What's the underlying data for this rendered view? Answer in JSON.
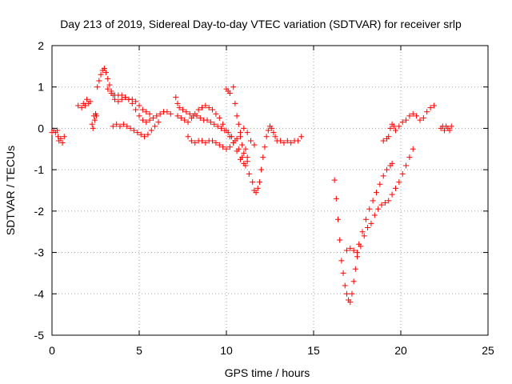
{
  "chart_data": {
    "type": "scatter",
    "title": "Day 213 of 2019, Sidereal Day-to-day VTEC variation (SDTVAR) for receiver srlp",
    "xlabel": "GPS time / hours",
    "ylabel": "SDTVAR / TECUs",
    "xlim": [
      0,
      25
    ],
    "ylim": [
      -5,
      2
    ],
    "xticks": [
      "0",
      "5",
      "10",
      "15",
      "20",
      "25"
    ],
    "yticks": [
      "2",
      "1",
      "0",
      "-1",
      "-2",
      "-3",
      "-4",
      "-5"
    ],
    "grid": true,
    "marker": "+",
    "color": "#ff0000",
    "series": [
      {
        "name": "SDTVAR",
        "points": [
          [
            0.0,
            -0.1
          ],
          [
            0.1,
            -0.05
          ],
          [
            0.2,
            -0.1
          ],
          [
            0.3,
            -0.05
          ],
          [
            0.35,
            -0.2
          ],
          [
            0.4,
            -0.3
          ],
          [
            0.5,
            -0.25
          ],
          [
            0.6,
            -0.35
          ],
          [
            0.7,
            -0.2
          ],
          [
            1.5,
            0.55
          ],
          [
            1.7,
            0.5
          ],
          [
            1.8,
            0.6
          ],
          [
            1.9,
            0.55
          ],
          [
            2.0,
            0.7
          ],
          [
            2.1,
            0.6
          ],
          [
            2.2,
            0.65
          ],
          [
            2.3,
            0.1
          ],
          [
            2.35,
            0.0
          ],
          [
            2.4,
            0.3
          ],
          [
            2.45,
            0.2
          ],
          [
            2.5,
            0.35
          ],
          [
            2.55,
            0.3
          ],
          [
            2.6,
            1.0
          ],
          [
            2.7,
            1.15
          ],
          [
            2.8,
            1.3
          ],
          [
            2.9,
            1.4
          ],
          [
            3.0,
            1.45
          ],
          [
            3.1,
            1.35
          ],
          [
            3.2,
            1.2
          ],
          [
            3.3,
            1.05
          ],
          [
            3.4,
            0.9
          ],
          [
            3.5,
            0.8
          ],
          [
            3.6,
            0.7
          ],
          [
            3.8,
            0.65
          ],
          [
            4.0,
            0.7
          ],
          [
            4.2,
            0.75
          ],
          [
            4.4,
            0.7
          ],
          [
            4.6,
            0.6
          ],
          [
            4.8,
            0.45
          ],
          [
            5.0,
            0.3
          ],
          [
            5.2,
            0.2
          ],
          [
            5.4,
            0.15
          ],
          [
            5.6,
            0.2
          ],
          [
            5.8,
            0.25
          ],
          [
            6.0,
            0.3
          ],
          [
            6.2,
            0.35
          ],
          [
            6.4,
            0.4
          ],
          [
            6.6,
            0.4
          ],
          [
            6.8,
            0.35
          ],
          [
            3.2,
            0.95
          ],
          [
            3.4,
            0.85
          ],
          [
            3.6,
            0.8
          ],
          [
            3.8,
            0.8
          ],
          [
            4.0,
            0.8
          ],
          [
            4.2,
            0.75
          ],
          [
            4.4,
            0.7
          ],
          [
            4.6,
            0.7
          ],
          [
            4.8,
            0.65
          ],
          [
            5.0,
            0.55
          ],
          [
            5.2,
            0.45
          ],
          [
            5.4,
            0.4
          ],
          [
            5.6,
            0.35
          ],
          [
            3.5,
            0.05
          ],
          [
            3.7,
            0.1
          ],
          [
            3.9,
            0.05
          ],
          [
            4.1,
            0.1
          ],
          [
            4.3,
            0.05
          ],
          [
            4.5,
            0.0
          ],
          [
            4.7,
            -0.05
          ],
          [
            4.9,
            -0.1
          ],
          [
            5.1,
            -0.15
          ],
          [
            5.3,
            -0.2
          ],
          [
            5.5,
            -0.15
          ],
          [
            5.7,
            -0.05
          ],
          [
            5.9,
            0.05
          ],
          [
            6.1,
            0.15
          ],
          [
            7.1,
            0.75
          ],
          [
            7.2,
            0.6
          ],
          [
            7.3,
            0.5
          ],
          [
            7.5,
            0.45
          ],
          [
            7.7,
            0.4
          ],
          [
            7.9,
            0.35
          ],
          [
            8.1,
            0.3
          ],
          [
            8.3,
            0.3
          ],
          [
            8.5,
            0.25
          ],
          [
            8.7,
            0.2
          ],
          [
            8.9,
            0.2
          ],
          [
            9.1,
            0.15
          ],
          [
            9.3,
            0.1
          ],
          [
            9.5,
            0.05
          ],
          [
            9.7,
            0.0
          ],
          [
            9.9,
            -0.05
          ],
          [
            10.1,
            -0.1
          ],
          [
            10.3,
            -0.2
          ],
          [
            10.5,
            -0.3
          ],
          [
            10.7,
            -0.5
          ],
          [
            10.9,
            -0.7
          ],
          [
            11.1,
            -0.9
          ],
          [
            11.3,
            -1.1
          ],
          [
            11.5,
            -1.3
          ],
          [
            11.6,
            -1.5
          ],
          [
            11.7,
            -1.55
          ],
          [
            11.8,
            -1.45
          ],
          [
            11.9,
            -1.3
          ],
          [
            12.0,
            -1.0
          ],
          [
            12.1,
            -0.7
          ],
          [
            12.2,
            -0.45
          ],
          [
            12.3,
            -0.2
          ],
          [
            12.4,
            -0.05
          ],
          [
            12.5,
            0.05
          ],
          [
            12.6,
            0.0
          ],
          [
            12.7,
            -0.1
          ],
          [
            12.8,
            -0.2
          ],
          [
            12.9,
            -0.3
          ],
          [
            13.1,
            -0.3
          ],
          [
            13.3,
            -0.35
          ],
          [
            13.5,
            -0.3
          ],
          [
            13.7,
            -0.35
          ],
          [
            13.9,
            -0.3
          ],
          [
            14.1,
            -0.3
          ],
          [
            14.3,
            -0.2
          ],
          [
            7.2,
            0.3
          ],
          [
            7.4,
            0.25
          ],
          [
            7.6,
            0.2
          ],
          [
            7.8,
            0.15
          ],
          [
            8.0,
            0.25
          ],
          [
            8.2,
            0.35
          ],
          [
            8.4,
            0.45
          ],
          [
            8.6,
            0.5
          ],
          [
            8.8,
            0.55
          ],
          [
            9.0,
            0.5
          ],
          [
            9.2,
            0.45
          ],
          [
            9.4,
            0.35
          ],
          [
            9.6,
            0.25
          ],
          [
            9.8,
            0.1
          ],
          [
            10.0,
            -0.05
          ],
          [
            10.2,
            -0.2
          ],
          [
            10.4,
            -0.35
          ],
          [
            10.6,
            -0.55
          ],
          [
            10.8,
            -0.75
          ],
          [
            11.0,
            -0.85
          ],
          [
            11.2,
            -0.8
          ],
          [
            7.8,
            -0.2
          ],
          [
            8.0,
            -0.3
          ],
          [
            8.2,
            -0.35
          ],
          [
            8.4,
            -0.3
          ],
          [
            8.6,
            -0.3
          ],
          [
            8.8,
            -0.35
          ],
          [
            9.0,
            -0.3
          ],
          [
            9.2,
            -0.3
          ],
          [
            9.4,
            -0.35
          ],
          [
            9.6,
            -0.4
          ],
          [
            9.8,
            -0.45
          ],
          [
            10.0,
            -0.5
          ],
          [
            10.2,
            -0.45
          ],
          [
            10.4,
            -0.35
          ],
          [
            10.6,
            -0.25
          ],
          [
            10.8,
            -0.1
          ],
          [
            11.0,
            0.0
          ],
          [
            11.2,
            -0.1
          ],
          [
            11.4,
            -0.3
          ],
          [
            11.6,
            -0.4
          ],
          [
            10.0,
            0.95
          ],
          [
            10.1,
            0.9
          ],
          [
            10.2,
            0.85
          ],
          [
            10.4,
            1.0
          ],
          [
            10.5,
            0.6
          ],
          [
            10.6,
            0.3
          ],
          [
            10.7,
            0.1
          ],
          [
            10.8,
            -0.2
          ],
          [
            10.9,
            -0.4
          ],
          [
            11.0,
            -0.6
          ],
          [
            11.1,
            -0.5
          ],
          [
            11.2,
            -0.7
          ],
          [
            16.2,
            -1.25
          ],
          [
            16.3,
            -1.7
          ],
          [
            16.4,
            -2.2
          ],
          [
            16.5,
            -2.7
          ],
          [
            16.6,
            -3.2
          ],
          [
            16.7,
            -3.5
          ],
          [
            16.8,
            -3.8
          ],
          [
            16.9,
            -4.0
          ],
          [
            17.0,
            -4.15
          ],
          [
            17.1,
            -4.2
          ],
          [
            17.2,
            -4.0
          ],
          [
            17.3,
            -3.7
          ],
          [
            17.4,
            -3.4
          ],
          [
            17.5,
            -3.1
          ],
          [
            17.6,
            -2.8
          ],
          [
            17.8,
            -2.5
          ],
          [
            18.0,
            -2.2
          ],
          [
            18.2,
            -1.95
          ],
          [
            18.4,
            -1.75
          ],
          [
            18.6,
            -1.55
          ],
          [
            18.8,
            -1.35
          ],
          [
            19.0,
            -1.15
          ],
          [
            19.2,
            -1.0
          ],
          [
            19.4,
            -0.9
          ],
          [
            19.5,
            -0.85
          ],
          [
            16.9,
            -2.95
          ],
          [
            17.1,
            -2.9
          ],
          [
            17.3,
            -2.95
          ],
          [
            17.5,
            -3.0
          ],
          [
            17.7,
            -2.85
          ],
          [
            17.9,
            -2.6
          ],
          [
            18.1,
            -2.4
          ],
          [
            18.3,
            -2.3
          ],
          [
            18.5,
            -2.1
          ],
          [
            18.7,
            -1.95
          ],
          [
            18.9,
            -1.85
          ],
          [
            19.1,
            -1.8
          ],
          [
            19.3,
            -1.75
          ],
          [
            19.5,
            -1.6
          ],
          [
            19.7,
            -1.45
          ],
          [
            19.9,
            -1.3
          ],
          [
            20.1,
            -1.1
          ],
          [
            20.3,
            -0.9
          ],
          [
            20.5,
            -0.7
          ],
          [
            20.7,
            -0.5
          ],
          [
            19.0,
            -0.3
          ],
          [
            19.2,
            -0.25
          ],
          [
            19.3,
            -0.2
          ],
          [
            19.4,
            0.0
          ],
          [
            19.5,
            0.1
          ],
          [
            19.6,
            0.05
          ],
          [
            19.7,
            -0.05
          ],
          [
            19.9,
            0.05
          ],
          [
            20.1,
            0.15
          ],
          [
            20.3,
            0.2
          ],
          [
            20.5,
            0.3
          ],
          [
            20.7,
            0.35
          ],
          [
            20.9,
            0.3
          ],
          [
            21.1,
            0.2
          ],
          [
            21.3,
            0.25
          ],
          [
            21.5,
            0.4
          ],
          [
            21.7,
            0.5
          ],
          [
            21.9,
            0.55
          ],
          [
            22.3,
            0.0
          ],
          [
            22.4,
            0.05
          ],
          [
            22.5,
            -0.05
          ],
          [
            22.6,
            0.05
          ],
          [
            22.7,
            0.0
          ],
          [
            22.8,
            -0.05
          ],
          [
            22.9,
            0.05
          ]
        ]
      }
    ]
  }
}
